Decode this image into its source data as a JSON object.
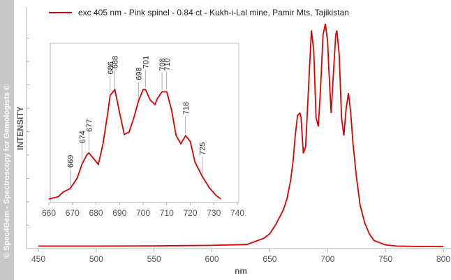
{
  "watermark": "© Spec4Gem - Spectroscopy for Gemologists ©",
  "colors": {
    "series": "#dd0000",
    "axis": "#b0b0b0",
    "watermark_bar": "#c8c8c8"
  },
  "chart_data": [
    {
      "type": "line",
      "id": "main",
      "title": "",
      "xlabel": "nm",
      "ylabel": "INTENSITY",
      "xlim": [
        450,
        800
      ],
      "ylim": [
        0,
        1
      ],
      "xticks": [
        450,
        500,
        550,
        600,
        650,
        700,
        750,
        800
      ],
      "y_tick_count": 10,
      "grid": false,
      "legend": "top-left",
      "series": [
        {
          "name": "exc 405 nm - Pink spinel - 0.84 ct - Kukh-i-Lal mine, Pamir Mts, Tajikistan",
          "color": "#dd0000",
          "x": [
            450,
            500,
            550,
            600,
            630,
            645,
            650,
            655,
            658,
            662,
            665,
            668,
            670,
            672,
            674,
            676,
            677,
            679,
            681,
            684,
            686,
            688,
            690,
            692,
            694,
            696,
            698,
            700,
            701,
            703,
            705,
            707,
            708,
            710,
            712,
            714,
            716,
            718,
            720,
            722,
            725,
            728,
            732,
            736,
            740,
            750,
            760,
            780,
            800
          ],
          "y": [
            0.005,
            0.005,
            0.006,
            0.008,
            0.012,
            0.04,
            0.06,
            0.1,
            0.13,
            0.17,
            0.22,
            0.3,
            0.38,
            0.5,
            0.59,
            0.6,
            0.58,
            0.42,
            0.45,
            0.77,
            0.97,
            0.88,
            0.58,
            0.54,
            0.72,
            0.95,
            1.0,
            0.92,
            0.8,
            0.6,
            0.78,
            0.95,
            0.97,
            0.86,
            0.58,
            0.5,
            0.62,
            0.69,
            0.6,
            0.46,
            0.31,
            0.19,
            0.11,
            0.06,
            0.03,
            0.01,
            0.005,
            0.003,
            0.003
          ]
        }
      ]
    },
    {
      "type": "line",
      "id": "inset",
      "xlim": [
        660,
        740
      ],
      "ylim": [
        0,
        1
      ],
      "xticks": [
        660,
        670,
        680,
        690,
        700,
        710,
        720,
        730,
        740
      ],
      "grid": false,
      "series": [
        {
          "name": "inset zoom",
          "color": "#dd0000",
          "x": [
            660,
            664,
            666,
            669,
            672,
            674,
            676,
            677,
            679,
            681,
            683,
            685,
            686,
            688,
            690,
            692,
            694,
            696,
            698,
            700,
            701,
            703,
            705,
            706,
            708,
            710,
            712,
            714,
            716,
            718,
            720,
            722,
            725,
            728,
            731,
            733
          ],
          "y": [
            0.0,
            0.02,
            0.06,
            0.09,
            0.18,
            0.3,
            0.38,
            0.4,
            0.35,
            0.3,
            0.48,
            0.75,
            0.9,
            0.95,
            0.75,
            0.56,
            0.58,
            0.7,
            0.85,
            0.95,
            0.95,
            0.86,
            0.82,
            0.87,
            0.93,
            0.93,
            0.78,
            0.55,
            0.48,
            0.55,
            0.5,
            0.32,
            0.2,
            0.1,
            0.03,
            0.0
          ]
        }
      ],
      "annotations": [
        {
          "label": "669",
          "x": 669,
          "y": 0.09
        },
        {
          "label": "674",
          "x": 674,
          "y": 0.3
        },
        {
          "label": "677",
          "x": 677,
          "y": 0.4
        },
        {
          "label": "686",
          "x": 686,
          "y": 0.9
        },
        {
          "label": "688",
          "x": 688,
          "y": 0.95
        },
        {
          "label": "698",
          "x": 698,
          "y": 0.85
        },
        {
          "label": "701",
          "x": 701,
          "y": 0.95
        },
        {
          "label": "708",
          "x": 708,
          "y": 0.93
        },
        {
          "label": "710",
          "x": 710,
          "y": 0.93
        },
        {
          "label": "718",
          "x": 718,
          "y": 0.55
        },
        {
          "label": "725",
          "x": 725,
          "y": 0.2
        }
      ]
    }
  ]
}
